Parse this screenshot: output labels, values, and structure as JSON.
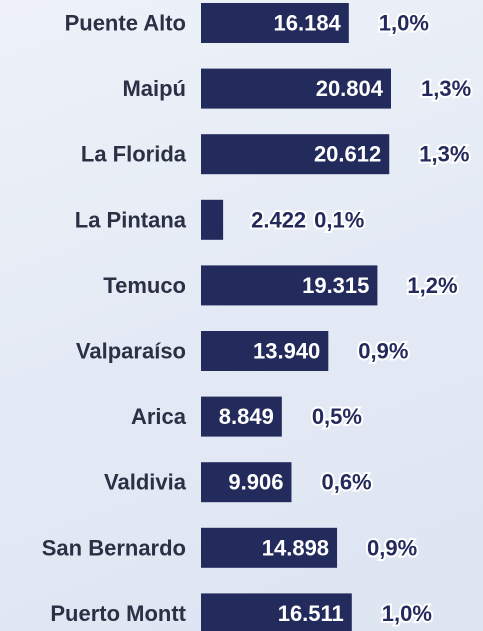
{
  "chart_data": {
    "type": "hbar",
    "categories": [
      "Puente Alto",
      "Maipú",
      "La Florida",
      "La Pintana",
      "Temuco",
      "Valparaíso",
      "Arica",
      "Valdivia",
      "San Bernardo",
      "Puerto Montt"
    ],
    "values": [
      16184,
      20804,
      20612,
      2422,
      19315,
      13940,
      8849,
      9906,
      14898,
      16511
    ],
    "value_labels": [
      "16.184",
      "20.804",
      "20.612",
      "2.422",
      "19.315",
      "13.940",
      "8.849",
      "9.906",
      "14.898",
      "16.511"
    ],
    "shares": [
      1.0,
      1.3,
      1.3,
      0.1,
      1.2,
      0.9,
      0.5,
      0.6,
      0.9,
      1.0
    ],
    "share_labels": [
      "1,0%",
      "1,3%",
      "1,3%",
      "0,1%",
      "1,2%",
      "0,9%",
      "0,5%",
      "0,6%",
      "0,9%",
      "1,0%"
    ],
    "color": "#232a5c"
  }
}
